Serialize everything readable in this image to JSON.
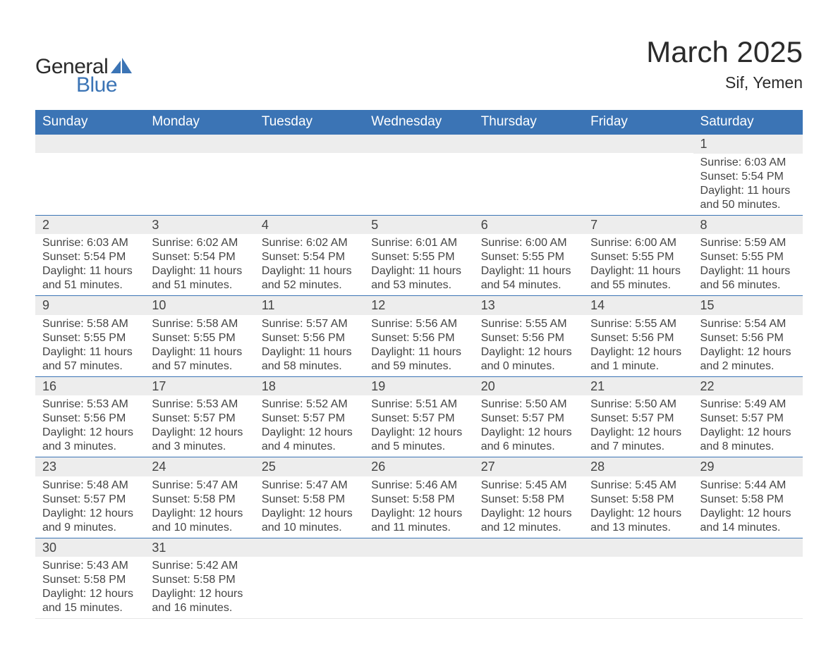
{
  "brand": {
    "word1": "General",
    "word2": "Blue",
    "accent_color": "#3b74b5"
  },
  "title": "March 2025",
  "location": "Sif, Yemen",
  "header_bg": "#3b74b5",
  "header_text_color": "#ffffff",
  "daynum_bg": "#ededed",
  "row_border_color": "#3b74b5",
  "text_color": "#3a3a3a",
  "day_headers": [
    "Sunday",
    "Monday",
    "Tuesday",
    "Wednesday",
    "Thursday",
    "Friday",
    "Saturday"
  ],
  "weeks": [
    [
      null,
      null,
      null,
      null,
      null,
      null,
      {
        "n": "1",
        "sr": "6:03 AM",
        "ss": "5:54 PM",
        "dl": "11 hours and 50 minutes."
      }
    ],
    [
      {
        "n": "2",
        "sr": "6:03 AM",
        "ss": "5:54 PM",
        "dl": "11 hours and 51 minutes."
      },
      {
        "n": "3",
        "sr": "6:02 AM",
        "ss": "5:54 PM",
        "dl": "11 hours and 51 minutes."
      },
      {
        "n": "4",
        "sr": "6:02 AM",
        "ss": "5:54 PM",
        "dl": "11 hours and 52 minutes."
      },
      {
        "n": "5",
        "sr": "6:01 AM",
        "ss": "5:55 PM",
        "dl": "11 hours and 53 minutes."
      },
      {
        "n": "6",
        "sr": "6:00 AM",
        "ss": "5:55 PM",
        "dl": "11 hours and 54 minutes."
      },
      {
        "n": "7",
        "sr": "6:00 AM",
        "ss": "5:55 PM",
        "dl": "11 hours and 55 minutes."
      },
      {
        "n": "8",
        "sr": "5:59 AM",
        "ss": "5:55 PM",
        "dl": "11 hours and 56 minutes."
      }
    ],
    [
      {
        "n": "9",
        "sr": "5:58 AM",
        "ss": "5:55 PM",
        "dl": "11 hours and 57 minutes."
      },
      {
        "n": "10",
        "sr": "5:58 AM",
        "ss": "5:55 PM",
        "dl": "11 hours and 57 minutes."
      },
      {
        "n": "11",
        "sr": "5:57 AM",
        "ss": "5:56 PM",
        "dl": "11 hours and 58 minutes."
      },
      {
        "n": "12",
        "sr": "5:56 AM",
        "ss": "5:56 PM",
        "dl": "11 hours and 59 minutes."
      },
      {
        "n": "13",
        "sr": "5:55 AM",
        "ss": "5:56 PM",
        "dl": "12 hours and 0 minutes."
      },
      {
        "n": "14",
        "sr": "5:55 AM",
        "ss": "5:56 PM",
        "dl": "12 hours and 1 minute."
      },
      {
        "n": "15",
        "sr": "5:54 AM",
        "ss": "5:56 PM",
        "dl": "12 hours and 2 minutes."
      }
    ],
    [
      {
        "n": "16",
        "sr": "5:53 AM",
        "ss": "5:56 PM",
        "dl": "12 hours and 3 minutes."
      },
      {
        "n": "17",
        "sr": "5:53 AM",
        "ss": "5:57 PM",
        "dl": "12 hours and 3 minutes."
      },
      {
        "n": "18",
        "sr": "5:52 AM",
        "ss": "5:57 PM",
        "dl": "12 hours and 4 minutes."
      },
      {
        "n": "19",
        "sr": "5:51 AM",
        "ss": "5:57 PM",
        "dl": "12 hours and 5 minutes."
      },
      {
        "n": "20",
        "sr": "5:50 AM",
        "ss": "5:57 PM",
        "dl": "12 hours and 6 minutes."
      },
      {
        "n": "21",
        "sr": "5:50 AM",
        "ss": "5:57 PM",
        "dl": "12 hours and 7 minutes."
      },
      {
        "n": "22",
        "sr": "5:49 AM",
        "ss": "5:57 PM",
        "dl": "12 hours and 8 minutes."
      }
    ],
    [
      {
        "n": "23",
        "sr": "5:48 AM",
        "ss": "5:57 PM",
        "dl": "12 hours and 9 minutes."
      },
      {
        "n": "24",
        "sr": "5:47 AM",
        "ss": "5:58 PM",
        "dl": "12 hours and 10 minutes."
      },
      {
        "n": "25",
        "sr": "5:47 AM",
        "ss": "5:58 PM",
        "dl": "12 hours and 10 minutes."
      },
      {
        "n": "26",
        "sr": "5:46 AM",
        "ss": "5:58 PM",
        "dl": "12 hours and 11 minutes."
      },
      {
        "n": "27",
        "sr": "5:45 AM",
        "ss": "5:58 PM",
        "dl": "12 hours and 12 minutes."
      },
      {
        "n": "28",
        "sr": "5:45 AM",
        "ss": "5:58 PM",
        "dl": "12 hours and 13 minutes."
      },
      {
        "n": "29",
        "sr": "5:44 AM",
        "ss": "5:58 PM",
        "dl": "12 hours and 14 minutes."
      }
    ],
    [
      {
        "n": "30",
        "sr": "5:43 AM",
        "ss": "5:58 PM",
        "dl": "12 hours and 15 minutes."
      },
      {
        "n": "31",
        "sr": "5:42 AM",
        "ss": "5:58 PM",
        "dl": "12 hours and 16 minutes."
      },
      null,
      null,
      null,
      null,
      null
    ]
  ],
  "labels": {
    "sunrise": "Sunrise: ",
    "sunset": "Sunset: ",
    "daylight": "Daylight: "
  }
}
